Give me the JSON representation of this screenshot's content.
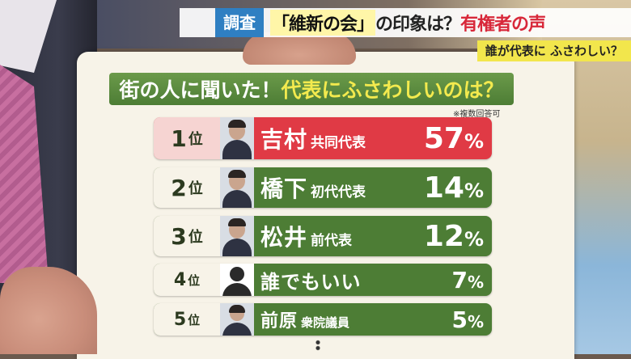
{
  "topbar": {
    "tag": "調査",
    "title_quote": "「維新の会」",
    "title_mid": "の印象は？",
    "title_em": "有権者の声"
  },
  "subbar": {
    "text": "誰が代表に ふさわしい？"
  },
  "board": {
    "header_part1": "街の人に聞いた！",
    "header_part2": "代表にふさわしいのは？",
    "note": "※複数回答可",
    "rows": [
      {
        "rank": "1",
        "unit": "位",
        "name": "吉村",
        "role": "共同代表",
        "value": "57",
        "pct": "%"
      },
      {
        "rank": "2",
        "unit": "位",
        "name": "橋下",
        "role": "初代代表",
        "value": "14",
        "pct": "%"
      },
      {
        "rank": "3",
        "unit": "位",
        "name": "松井",
        "role": "前代表",
        "value": "12",
        "pct": "%"
      },
      {
        "rank": "4",
        "unit": "位",
        "name": "誰でもいい",
        "role": "",
        "value": "7",
        "pct": "%"
      },
      {
        "rank": "5",
        "unit": "位",
        "name": "前原",
        "role": "衆院議員",
        "value": "5",
        "pct": "%"
      }
    ]
  },
  "colors": {
    "green": "#4d7d35",
    "red": "#e03a45",
    "yellow": "#f2e64c",
    "blue": "#2f7fc2"
  }
}
